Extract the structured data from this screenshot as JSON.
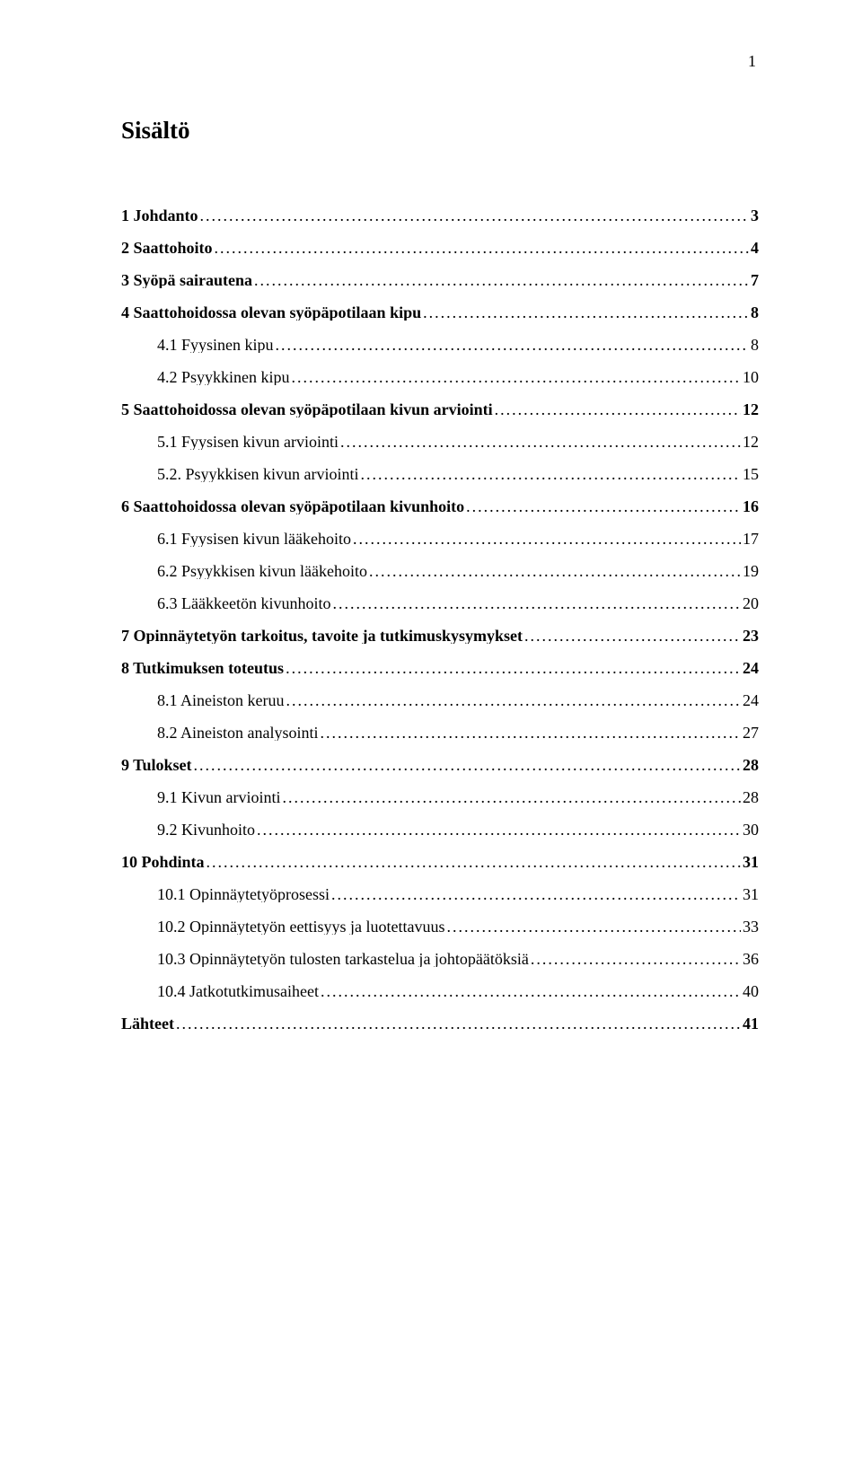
{
  "page_number": "1",
  "heading": "Sisältö",
  "dot_leader": "..............................................................................................................................................................................................................",
  "toc": [
    {
      "level": 0,
      "label": "1 Johdanto",
      "page": "3"
    },
    {
      "level": 0,
      "label": "2 Saattohoito",
      "page": "4"
    },
    {
      "level": 0,
      "label": "3 Syöpä sairautena",
      "page": "7"
    },
    {
      "level": 0,
      "label": "4 Saattohoidossa olevan syöpäpotilaan kipu",
      "page": "8"
    },
    {
      "level": 1,
      "label": "4.1 Fyysinen kipu",
      "page": "8"
    },
    {
      "level": 1,
      "label": "4.2 Psyykkinen kipu",
      "page": "10"
    },
    {
      "level": 0,
      "label": "5 Saattohoidossa olevan syöpäpotilaan kivun arviointi",
      "page": "12"
    },
    {
      "level": 1,
      "label": "5.1 Fyysisen kivun arviointi",
      "page": "12"
    },
    {
      "level": 1,
      "label": "5.2. Psyykkisen kivun arviointi",
      "page": "15"
    },
    {
      "level": 0,
      "label": "6 Saattohoidossa olevan syöpäpotilaan kivunhoito",
      "page": "16"
    },
    {
      "level": 1,
      "label": "6.1 Fyysisen kivun lääkehoito",
      "page": "17"
    },
    {
      "level": 1,
      "label": "6.2 Psyykkisen kivun lääkehoito",
      "page": "19"
    },
    {
      "level": 1,
      "label": "6.3 Lääkkeetön kivunhoito",
      "page": "20"
    },
    {
      "level": 0,
      "label": "7 Opinnäytetyön tarkoitus, tavoite ja tutkimuskysymykset",
      "page": "23"
    },
    {
      "level": 0,
      "label": "8 Tutkimuksen toteutus",
      "page": "24"
    },
    {
      "level": 1,
      "label": "8.1 Aineiston keruu",
      "page": "24"
    },
    {
      "level": 1,
      "label": "8.2 Aineiston analysointi",
      "page": "27"
    },
    {
      "level": 0,
      "label": "9 Tulokset",
      "page": "28"
    },
    {
      "level": 1,
      "label": "9.1 Kivun arviointi",
      "page": "28"
    },
    {
      "level": 1,
      "label": "9.2 Kivunhoito",
      "page": "30"
    },
    {
      "level": 0,
      "label": "10 Pohdinta",
      "page": "31"
    },
    {
      "level": 1,
      "label": "10.1 Opinnäytetyöprosessi",
      "page": "31"
    },
    {
      "level": 1,
      "label": "10.2 Opinnäytetyön eettisyys ja luotettavuus",
      "page": "33"
    },
    {
      "level": 1,
      "label": "10.3 Opinnäytetyön tulosten tarkastelua ja johtopäätöksiä",
      "page": "36"
    },
    {
      "level": 1,
      "label": "10.4 Jatkotutkimusaiheet",
      "page": "40"
    },
    {
      "level": 0,
      "label": "Lähteet",
      "page": "41"
    }
  ]
}
